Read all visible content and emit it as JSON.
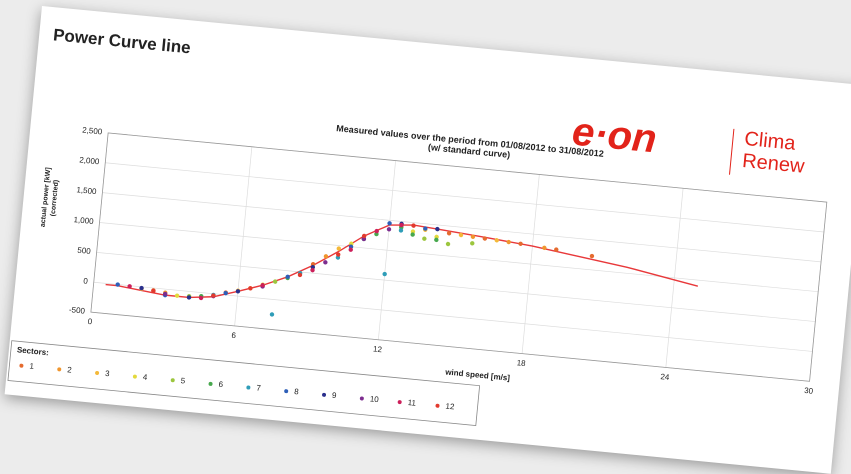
{
  "header": {
    "title": "Power Curve line",
    "logo": "e·on",
    "logo_text": [
      "Clima",
      "Renew"
    ]
  },
  "chart_data": {
    "type": "scatter",
    "title": "Measured values over the period from 01/08/2012 to 31/08/2012",
    "subtitle": "(w/ standard curve)",
    "x_label": "wind speed [m/s]",
    "y_label": [
      "actual power [kW]",
      "(corrected)"
    ],
    "xlim": [
      0,
      30
    ],
    "xticks": [
      0,
      6,
      12,
      18,
      24,
      30
    ],
    "ylim": [
      -500,
      2500
    ],
    "yticks": [
      -500,
      0,
      500,
      {
        "value": 1000,
        "label": "1,000"
      },
      {
        "value": 1500,
        "label": "1,500"
      },
      {
        "value": 2000,
        "label": "2,000"
      },
      {
        "value": 2500,
        "label": "2,500"
      }
    ],
    "grid": true,
    "legend_title": "Sectors:",
    "legend_position": "bottom-left",
    "standard_curve": {
      "color": "#e8383a",
      "x": [
        0.5,
        1,
        2,
        3,
        4,
        5,
        6,
        7,
        8,
        9,
        10,
        11,
        12,
        13,
        14,
        16,
        18,
        20,
        22,
        25
      ],
      "values": [
        -20,
        -20,
        -60,
        -100,
        -100,
        -50,
        80,
        220,
        400,
        630,
        900,
        1200,
        1420,
        1460,
        1430,
        1370,
        1300,
        1200,
        1100,
        900
      ]
    },
    "series": [
      {
        "name": "1",
        "color": "#e56b2f",
        "x": [
          2.5,
          5.5,
          9,
          14.5,
          16,
          17.5,
          19,
          20.5
        ],
        "values": [
          -40,
          40,
          650,
          1380,
          1350,
          1320,
          1280,
          1230
        ]
      },
      {
        "name": "2",
        "color": "#f0962e",
        "x": [
          3,
          6.5,
          9.5,
          12.5,
          15.5,
          17,
          18.5
        ],
        "values": [
          -60,
          150,
          800,
          1420,
          1360,
          1330,
          1290
        ]
      },
      {
        "name": "3",
        "color": "#f4b93a",
        "x": [
          2,
          6,
          10,
          13.5,
          15,
          16.5
        ],
        "values": [
          -30,
          90,
          950,
          1400,
          1370,
          1340
        ]
      },
      {
        "name": "4",
        "color": "#e3d93c",
        "x": [
          3.5,
          7,
          10.5,
          13,
          14
        ],
        "values": [
          -90,
          230,
          1050,
          1350,
          1300
        ]
      },
      {
        "name": "5",
        "color": "#9cc63e",
        "x": [
          4,
          7.5,
          11,
          13.5,
          14.5,
          15.5
        ],
        "values": [
          -80,
          300,
          1150,
          1250,
          1200,
          1250
        ]
      },
      {
        "name": "6",
        "color": "#47a84d",
        "x": [
          4.5,
          8,
          11.5,
          12.5,
          13,
          14
        ],
        "values": [
          -60,
          380,
          1250,
          1400,
          1300,
          1250
        ]
      },
      {
        "name": "7",
        "color": "#2f9db8",
        "x": [
          5,
          8.5,
          10,
          12,
          12.5,
          7.5
        ],
        "values": [
          -20,
          480,
          800,
          600,
          1350,
          -250
        ]
      },
      {
        "name": "8",
        "color": "#2e5fb8",
        "x": [
          1,
          3,
          5.5,
          8,
          10.5,
          12,
          13.5
        ],
        "values": [
          0,
          -100,
          30,
          400,
          1000,
          1450,
          1420
        ]
      },
      {
        "name": "9",
        "color": "#2a2f8c",
        "x": [
          2,
          4,
          6,
          9,
          11,
          12.5,
          14
        ],
        "values": [
          -20,
          -100,
          80,
          600,
          1150,
          1460,
          1430
        ]
      },
      {
        "name": "10",
        "color": "#7d2d8f",
        "x": [
          3,
          5,
          7,
          9.5,
          11,
          12
        ],
        "values": [
          -80,
          -40,
          200,
          700,
          1150,
          1350
        ]
      },
      {
        "name": "11",
        "color": "#cc1f5a",
        "x": [
          1.5,
          4.5,
          7,
          9,
          10.5,
          11.5,
          12.5
        ],
        "values": [
          -10,
          -90,
          220,
          550,
          950,
          1300,
          1440
        ]
      },
      {
        "name": "12",
        "color": "#e23a2e",
        "x": [
          2.5,
          5,
          6.5,
          8.5,
          10,
          11,
          13
        ],
        "values": [
          -50,
          -30,
          150,
          450,
          850,
          1200,
          1450
        ]
      }
    ]
  }
}
